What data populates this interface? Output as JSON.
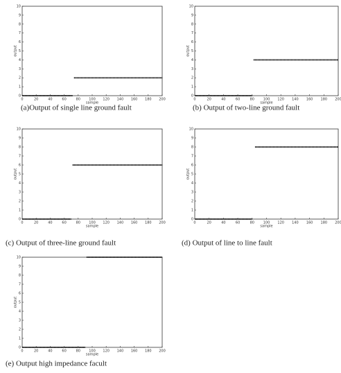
{
  "chart_data": [
    {
      "type": "line",
      "title": "(a)Output of single line ground fault",
      "xlabel": "sample",
      "ylabel": "output",
      "xlim": [
        0,
        200
      ],
      "xticks": [
        0,
        20,
        40,
        60,
        80,
        100,
        120,
        140,
        160,
        180,
        200
      ],
      "ylim": [
        0,
        10
      ],
      "yticks": [
        0,
        1,
        2,
        3,
        4,
        5,
        6,
        7,
        8,
        9,
        10
      ],
      "series": [
        {
          "color": "#222222",
          "x": [
            0,
            72,
            73,
            74,
            200
          ],
          "values": [
            0,
            0,
            null,
            2,
            2
          ]
        }
      ]
    },
    {
      "type": "line",
      "title": "(b) Output of two-line ground fault",
      "xlabel": "sample",
      "ylabel": "output",
      "xlim": [
        0,
        200
      ],
      "xticks": [
        0,
        20,
        40,
        60,
        80,
        100,
        120,
        140,
        160,
        180,
        200
      ],
      "ylim": [
        0,
        10
      ],
      "yticks": [
        0,
        1,
        2,
        3,
        4,
        5,
        6,
        7,
        8,
        9,
        10
      ],
      "series": [
        {
          "color": "#222222",
          "x": [
            0,
            80,
            81,
            82,
            200
          ],
          "values": [
            0,
            0,
            null,
            4,
            4
          ]
        }
      ]
    },
    {
      "type": "line",
      "title": "(c) Output of three-line ground fault",
      "xlabel": "sample",
      "ylabel": "output",
      "xlim": [
        0,
        200
      ],
      "xticks": [
        0,
        20,
        40,
        60,
        80,
        100,
        120,
        140,
        160,
        180,
        200
      ],
      "ylim": [
        0,
        10
      ],
      "yticks": [
        0,
        1,
        2,
        3,
        4,
        5,
        6,
        7,
        8,
        9,
        10
      ],
      "series": [
        {
          "color": "#222222",
          "x": [
            0,
            70,
            71,
            72,
            200
          ],
          "values": [
            0,
            0,
            null,
            6,
            6
          ]
        }
      ]
    },
    {
      "type": "line",
      "title": "(d) Output of line to line fault",
      "xlabel": "sample",
      "ylabel": "output",
      "xlim": [
        0,
        200
      ],
      "xticks": [
        0,
        20,
        40,
        60,
        80,
        100,
        120,
        140,
        160,
        180,
        200
      ],
      "ylim": [
        0,
        10
      ],
      "yticks": [
        0,
        1,
        2,
        3,
        4,
        5,
        6,
        7,
        8,
        9,
        10
      ],
      "series": [
        {
          "color": "#222222",
          "x": [
            0,
            80,
            82,
            84,
            200
          ],
          "values": [
            0,
            0,
            null,
            8,
            8
          ]
        }
      ]
    },
    {
      "type": "line",
      "title": "(e) Output high impedance facult",
      "xlabel": "sample",
      "ylabel": "output",
      "xlim": [
        0,
        200
      ],
      "xticks": [
        0,
        20,
        40,
        60,
        80,
        100,
        120,
        140,
        160,
        180,
        200
      ],
      "ylim": [
        0,
        10
      ],
      "yticks": [
        0,
        1,
        2,
        3,
        4,
        5,
        6,
        7,
        8,
        9,
        10
      ],
      "series": [
        {
          "color": "#222222",
          "x": [
            0,
            90,
            91,
            92,
            200
          ],
          "values": [
            0,
            0,
            null,
            10,
            10
          ]
        }
      ]
    }
  ]
}
